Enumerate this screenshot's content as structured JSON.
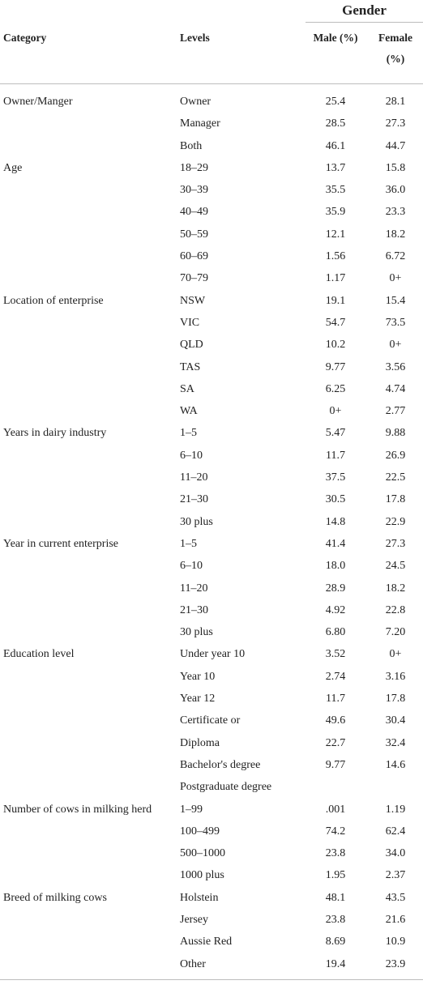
{
  "table": {
    "group_header": "Gender",
    "headers": {
      "category": "Category",
      "levels": "Levels",
      "male": "Male (%)",
      "female_line1": "Female",
      "female_line2": "(%)"
    },
    "rows": [
      {
        "category": "Owner/Manger",
        "level": "Owner",
        "male": "25.4",
        "female": "28.1"
      },
      {
        "category": "",
        "level": "Manager",
        "male": "28.5",
        "female": "27.3"
      },
      {
        "category": "",
        "level": "Both",
        "male": "46.1",
        "female": "44.7"
      },
      {
        "category": "Age",
        "level": "18–29",
        "male": "13.7",
        "female": "15.8"
      },
      {
        "category": "",
        "level": "30–39",
        "male": "35.5",
        "female": "36.0"
      },
      {
        "category": "",
        "level": "40–49",
        "male": "35.9",
        "female": "23.3"
      },
      {
        "category": "",
        "level": "50–59",
        "male": "12.1",
        "female": "18.2"
      },
      {
        "category": "",
        "level": "60–69",
        "male": "1.56",
        "female": "6.72"
      },
      {
        "category": "",
        "level": "70–79",
        "male": "1.17",
        "female": "0+"
      },
      {
        "category": "Location of enterprise",
        "level": "NSW",
        "male": "19.1",
        "female": "15.4"
      },
      {
        "category": "",
        "level": "VIC",
        "male": "54.7",
        "female": "73.5"
      },
      {
        "category": "",
        "level": "QLD",
        "male": "10.2",
        "female": "0+"
      },
      {
        "category": "",
        "level": "TAS",
        "male": "9.77",
        "female": "3.56"
      },
      {
        "category": "",
        "level": "SA",
        "male": "6.25",
        "female": "4.74"
      },
      {
        "category": "",
        "level": "WA",
        "male": "0+",
        "female": "2.77"
      },
      {
        "category": "Years in dairy industry",
        "level": "1–5",
        "male": "5.47",
        "female": "9.88"
      },
      {
        "category": "",
        "level": "6–10",
        "male": "11.7",
        "female": "26.9"
      },
      {
        "category": "",
        "level": "11–20",
        "male": "37.5",
        "female": "22.5"
      },
      {
        "category": "",
        "level": "21–30",
        "male": "30.5",
        "female": "17.8"
      },
      {
        "category": "",
        "level": "30 plus",
        "male": "14.8",
        "female": "22.9"
      },
      {
        "category": "Year in current enterprise",
        "level": "1–5",
        "male": "41.4",
        "female": "27.3"
      },
      {
        "category": "",
        "level": "6–10",
        "male": "18.0",
        "female": "24.5"
      },
      {
        "category": "",
        "level": "11–20",
        "male": "28.9",
        "female": "18.2"
      },
      {
        "category": "",
        "level": "21–30",
        "male": "4.92",
        "female": "22.8"
      },
      {
        "category": "",
        "level": "30 plus",
        "male": "6.80",
        "female": "7.20"
      },
      {
        "category": "Education level",
        "level": "Under year 10",
        "male": "3.52",
        "female": "0+"
      },
      {
        "category": "",
        "level": "Year 10",
        "male": "2.74",
        "female": "3.16"
      },
      {
        "category": "",
        "level": "Year 12",
        "male": "11.7",
        "female": "17.8"
      },
      {
        "category": "",
        "level": "Certificate or",
        "male": "49.6",
        "female": "30.4"
      },
      {
        "category": "",
        "level": "Diploma",
        "male": "22.7",
        "female": "32.4"
      },
      {
        "category": "",
        "level": "Bachelor's degree",
        "male": "9.77",
        "female": "14.6"
      },
      {
        "category": "",
        "level": "Postgraduate degree",
        "male": "",
        "female": ""
      },
      {
        "category": "Number of cows in milking herd",
        "level": "1–99",
        "male": ".001",
        "female": "1.19"
      },
      {
        "category": "",
        "level": "100–499",
        "male": "74.2",
        "female": "62.4"
      },
      {
        "category": "",
        "level": "500–1000",
        "male": "23.8",
        "female": "34.0"
      },
      {
        "category": "",
        "level": "1000 plus",
        "male": "1.95",
        "female": "2.37"
      },
      {
        "category": "Breed of milking cows",
        "level": "Holstein",
        "male": "48.1",
        "female": "43.5"
      },
      {
        "category": "",
        "level": "Jersey",
        "male": "23.8",
        "female": "21.6"
      },
      {
        "category": "",
        "level": "Aussie Red",
        "male": "8.69",
        "female": "10.9"
      },
      {
        "category": "",
        "level": "Other",
        "male": "19.4",
        "female": "23.9"
      }
    ]
  }
}
